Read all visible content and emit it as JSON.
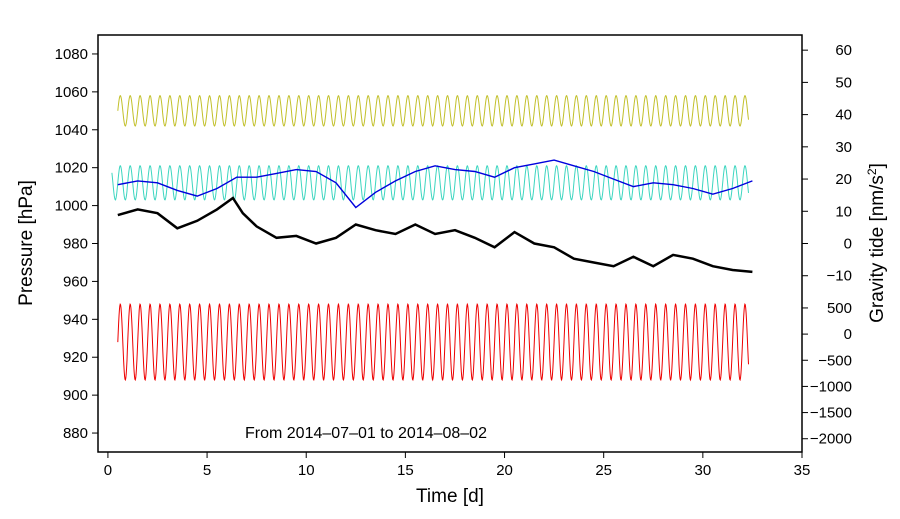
{
  "chart_data": {
    "type": "line",
    "xlabel": "Time [d]",
    "ylabel_left": "Pressure [hPa]",
    "ylabel_right_prefix": "Gravity tide [nm/s",
    "ylabel_right_sup": "2",
    "ylabel_right_suffix": "]",
    "annotation": "From 2014–07–01 to 2014–08–02",
    "xlim": [
      -0.5,
      35
    ],
    "ylim_left": [
      870,
      1090
    ],
    "x_ticks": [
      0,
      5,
      10,
      15,
      20,
      25,
      30,
      35
    ],
    "y_left_ticks": [
      880,
      900,
      920,
      940,
      960,
      980,
      1000,
      1020,
      1040,
      1060,
      1080
    ],
    "y_right_upper_ticks": [
      -10,
      0,
      10,
      20,
      30,
      40,
      50,
      60
    ],
    "y_right_upper_pressure_map": {
      "value_a": -10,
      "pressure_a": 963,
      "value_b": 60,
      "pressure_b": 1082
    },
    "y_right_lower_ticks": [
      -2000,
      -1500,
      -1000,
      -500,
      0,
      500
    ],
    "y_right_lower_pressure_map": {
      "value_a": -2000,
      "pressure_a": 877,
      "value_b": 500,
      "pressure_b": 946
    },
    "series": [
      {
        "name": "Pressure (black)",
        "color": "#000000",
        "x": [
          0.5,
          1.5,
          2.5,
          3.5,
          4.5,
          5.5,
          6.3,
          6.8,
          7.5,
          8.5,
          9.5,
          10.5,
          11.5,
          12.5,
          13.5,
          14.5,
          15.5,
          16.5,
          17.5,
          18.5,
          19.5,
          20.5,
          21.5,
          22.5,
          23.5,
          24.5,
          25.5,
          26.5,
          27.5,
          28.5,
          29.5,
          30.5,
          31.5,
          32.5
        ],
        "y": [
          995,
          998,
          996,
          988,
          992,
          998,
          1004,
          996,
          989,
          983,
          984,
          980,
          983,
          990,
          987,
          985,
          990,
          985,
          987,
          983,
          978,
          986,
          980,
          978,
          972,
          970,
          968,
          973,
          968,
          974,
          972,
          968,
          966,
          965
        ]
      },
      {
        "name": "Series blue",
        "color": "#0000dd",
        "x": [
          0.5,
          1.5,
          2.5,
          3.5,
          4.5,
          5.5,
          6.5,
          7.5,
          8.5,
          9.5,
          10.5,
          11.5,
          12.5,
          13.5,
          14.5,
          15.5,
          16.5,
          17.5,
          18.5,
          19.5,
          20.5,
          21.5,
          22.5,
          23.5,
          24.5,
          25.5,
          26.5,
          27.5,
          28.5,
          29.5,
          30.5,
          31.5,
          32.5
        ],
        "y": [
          1011,
          1013,
          1012,
          1008,
          1005,
          1009,
          1015,
          1015,
          1017,
          1019,
          1018,
          1012,
          999,
          1007,
          1013,
          1018,
          1021,
          1019,
          1018,
          1015,
          1020,
          1022,
          1024,
          1021,
          1018,
          1014,
          1010,
          1012,
          1011,
          1009,
          1006,
          1009,
          1013
        ]
      }
    ],
    "oscillating_series": [
      {
        "name": "Series yellow-green",
        "color": "#c2c02a",
        "axis": "right_upper",
        "x_start": 0.5,
        "x_end": 32.3,
        "base": 1050,
        "amplitude": 8,
        "period_days": 0.5
      },
      {
        "name": "Series cyan",
        "color": "#3dd6c0",
        "axis": "right_upper",
        "x_start": 0.2,
        "x_end": 32.3,
        "base": 1012,
        "amplitude": 9,
        "period_days": 0.5
      },
      {
        "name": "Gravity tide (red)",
        "color": "#ee0000",
        "axis": "right_lower",
        "x_start": 0.5,
        "x_end": 32.3,
        "base": 928,
        "amplitude": 20,
        "period_days": 0.5
      }
    ]
  }
}
